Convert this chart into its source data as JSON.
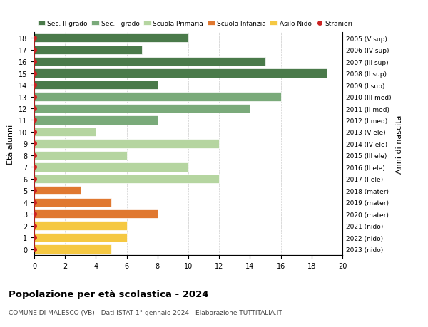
{
  "ages": [
    18,
    17,
    16,
    15,
    14,
    13,
    12,
    11,
    10,
    9,
    8,
    7,
    6,
    5,
    4,
    3,
    2,
    1,
    0
  ],
  "years": [
    "2005 (V sup)",
    "2006 (IV sup)",
    "2007 (III sup)",
    "2008 (II sup)",
    "2009 (I sup)",
    "2010 (III med)",
    "2011 (II med)",
    "2012 (I med)",
    "2013 (V ele)",
    "2014 (IV ele)",
    "2015 (III ele)",
    "2016 (II ele)",
    "2017 (I ele)",
    "2018 (mater)",
    "2019 (mater)",
    "2020 (mater)",
    "2021 (nido)",
    "2022 (nido)",
    "2023 (nido)"
  ],
  "values": [
    10,
    7,
    15,
    19,
    8,
    16,
    14,
    8,
    4,
    12,
    6,
    10,
    12,
    3,
    5,
    8,
    6,
    6,
    5
  ],
  "stranieri_x": [
    0,
    1,
    1,
    1,
    1,
    1,
    1,
    1,
    1,
    1,
    0,
    1,
    1,
    1,
    1,
    1,
    1,
    1,
    1
  ],
  "bar_colors": [
    "#4a7a4a",
    "#4a7a4a",
    "#4a7a4a",
    "#4a7a4a",
    "#4a7a4a",
    "#7aaa7a",
    "#7aaa7a",
    "#7aaa7a",
    "#b5d5a0",
    "#b5d5a0",
    "#b5d5a0",
    "#b5d5a0",
    "#b5d5a0",
    "#e07830",
    "#e07830",
    "#e07830",
    "#f5c842",
    "#f5c842",
    "#f5c842"
  ],
  "legend_labels": [
    "Sec. II grado",
    "Sec. I grado",
    "Scuola Primaria",
    "Scuola Infanzia",
    "Asilo Nido",
    "Stranieri"
  ],
  "legend_colors": [
    "#4a7a4a",
    "#7aaa7a",
    "#b5d5a0",
    "#e07830",
    "#f5c842",
    "#cc2222"
  ],
  "ylabel_left": "Età alunni",
  "ylabel_right": "Anni di nascita",
  "xlim": [
    0,
    20
  ],
  "xticks": [
    0,
    2,
    4,
    6,
    8,
    10,
    12,
    14,
    16,
    18,
    20
  ],
  "title": "Popolazione per età scolastica - 2024",
  "subtitle": "COMUNE DI MALESCO (VB) - Dati ISTAT 1° gennaio 2024 - Elaborazione TUTTITALIA.IT",
  "stranieri_color": "#cc2222",
  "grid_color": "#cccccc",
  "bar_height": 0.75
}
